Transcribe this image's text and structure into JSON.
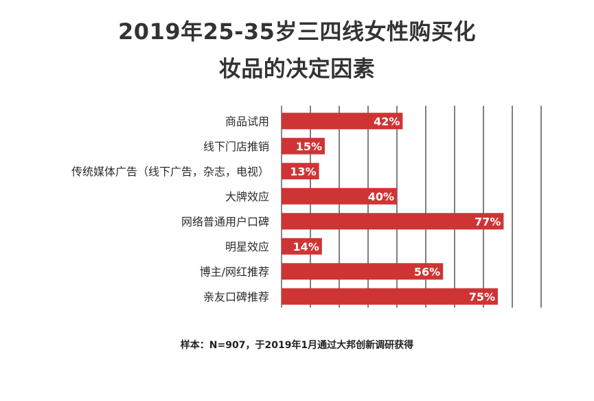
{
  "title_line1": "2019年25-35岁三四线女性购买化",
  "title_line2": "妆品的决定因素",
  "footnote": "样本：N=907，于2019年1月通过大邦创新调研获得",
  "colors": {
    "bar": "#cf3434",
    "bar_label": "#ffffff",
    "grid": "#3a3a3a",
    "axis": "#888888",
    "category_text": "#2b2b2b"
  },
  "chart_data": {
    "type": "bar",
    "orientation": "horizontal",
    "categories": [
      "商品试用",
      "线下门店推销",
      "传统媒体广告（线下广告，杂志，电视）",
      "大牌效应",
      "网络普通用户口碑",
      "明星效应",
      "博主/网红推荐",
      "亲友口碑推荐"
    ],
    "values": [
      42,
      15,
      13,
      40,
      77,
      14,
      56,
      75
    ],
    "value_labels": [
      "42%",
      "15%",
      "13%",
      "40%",
      "77%",
      "14%",
      "56%",
      "75%"
    ],
    "xlim": [
      0,
      90
    ],
    "grid": true,
    "grid_step": 10,
    "title": "2019年25-35岁三四线女性购买化妆品的决定因素"
  }
}
